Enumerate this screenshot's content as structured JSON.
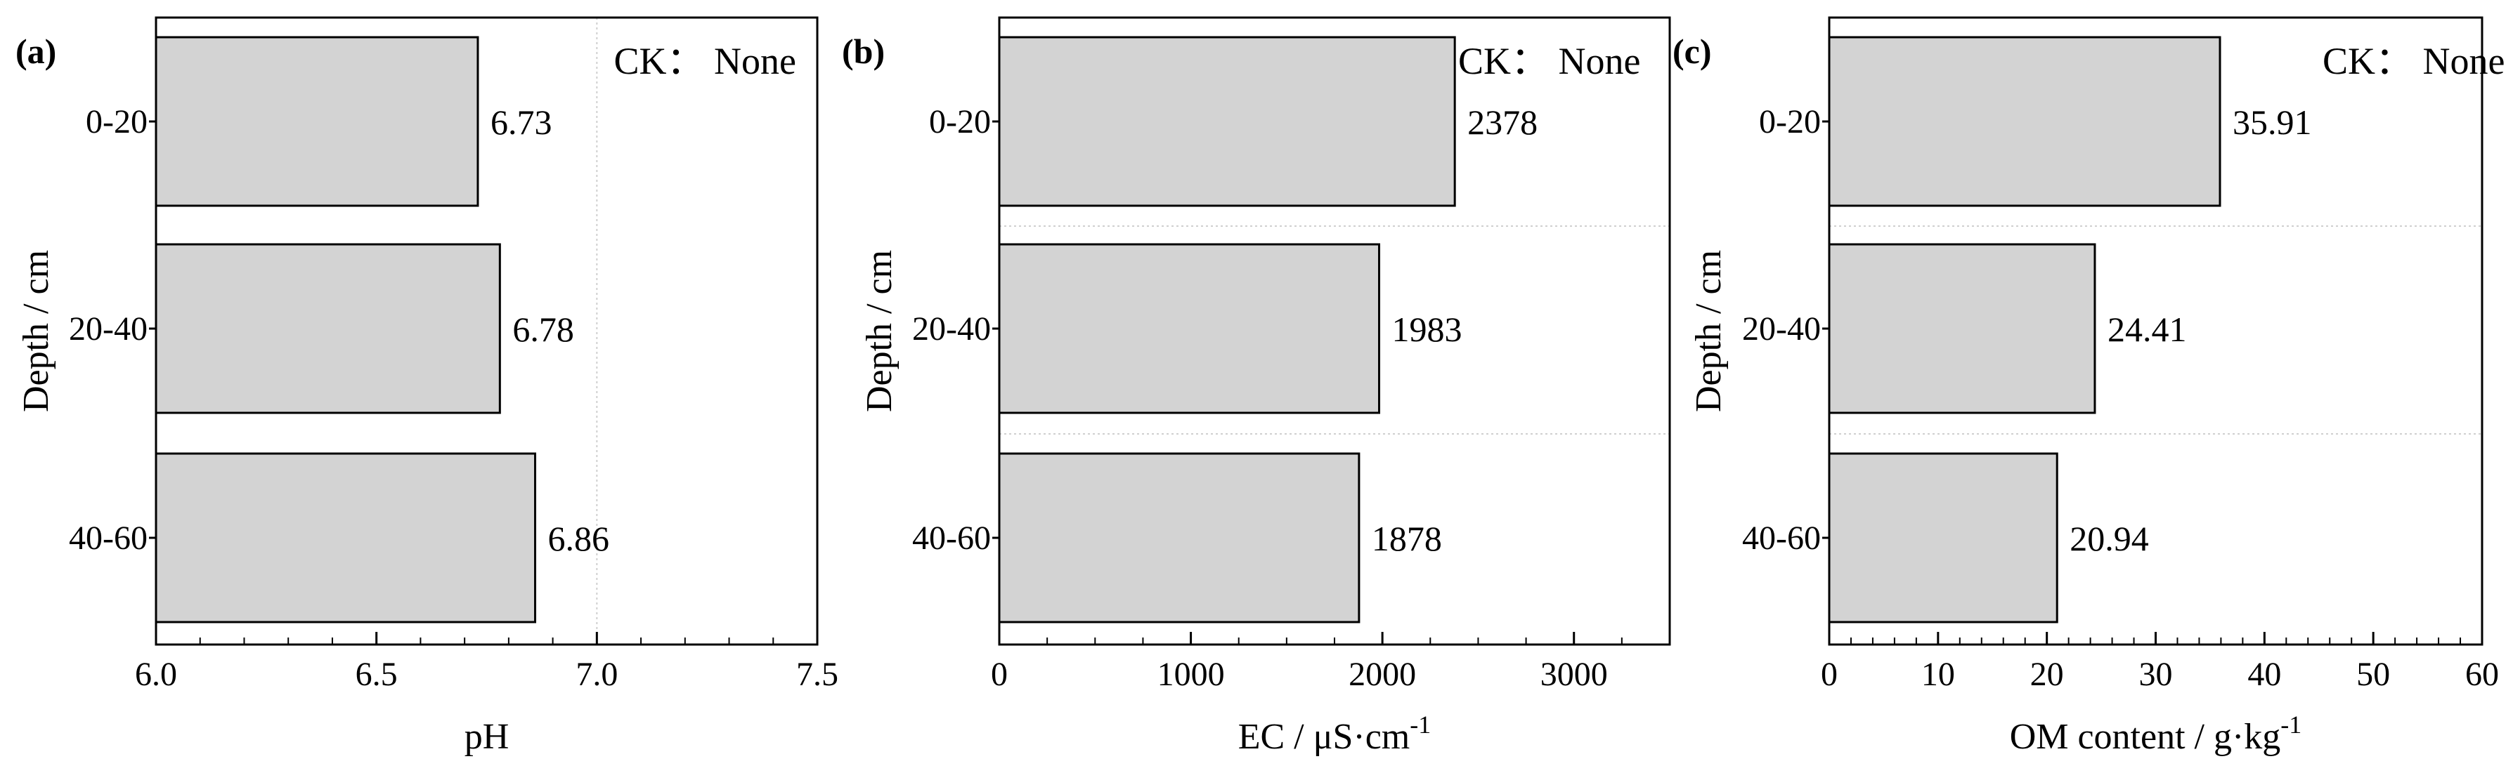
{
  "chart_data": [
    {
      "panel_label": "(a)",
      "type": "bar",
      "orientation": "horizontal",
      "annotation": "CK： None",
      "categories": [
        "0-20",
        "20-40",
        "40-60"
      ],
      "values": [
        6.73,
        6.78,
        6.86
      ],
      "value_labels": [
        "6.73",
        "6.78",
        "6.86"
      ],
      "xlabel": "pH",
      "ylabel": "Depth / cm",
      "xlim": [
        6.0,
        7.5
      ],
      "xticks": [
        "6.0",
        "6.5",
        "7.0",
        "7.5"
      ],
      "ref_line_x": 7.0,
      "bar_color": "#d3d3d3"
    },
    {
      "panel_label": "(b)",
      "type": "bar",
      "orientation": "horizontal",
      "annotation": "CK： None",
      "categories": [
        "0-20",
        "20-40",
        "40-60"
      ],
      "values": [
        2378,
        1983,
        1878
      ],
      "value_labels": [
        "2378",
        "1983",
        "1878"
      ],
      "xlabel": "EC / μS·cm",
      "xlabel_sup": "-1",
      "ylabel": "Depth / cm",
      "xlim": [
        0,
        3500
      ],
      "xticks": [
        "0",
        "1000",
        "2000",
        "3000"
      ],
      "bar_color": "#d3d3d3"
    },
    {
      "panel_label": "(c)",
      "type": "bar",
      "orientation": "horizontal",
      "annotation": "CK： None",
      "categories": [
        "0-20",
        "20-40",
        "40-60"
      ],
      "values": [
        35.91,
        24.41,
        20.94
      ],
      "value_labels": [
        "35.91",
        "24.41",
        "20.94"
      ],
      "xlabel": "OM content / g·kg",
      "xlabel_sup": "-1",
      "ylabel": "Depth / cm",
      "xlim": [
        0,
        60
      ],
      "xticks": [
        "0",
        "10",
        "20",
        "30",
        "40",
        "50",
        "60"
      ],
      "bar_color": "#d3d3d3"
    }
  ]
}
